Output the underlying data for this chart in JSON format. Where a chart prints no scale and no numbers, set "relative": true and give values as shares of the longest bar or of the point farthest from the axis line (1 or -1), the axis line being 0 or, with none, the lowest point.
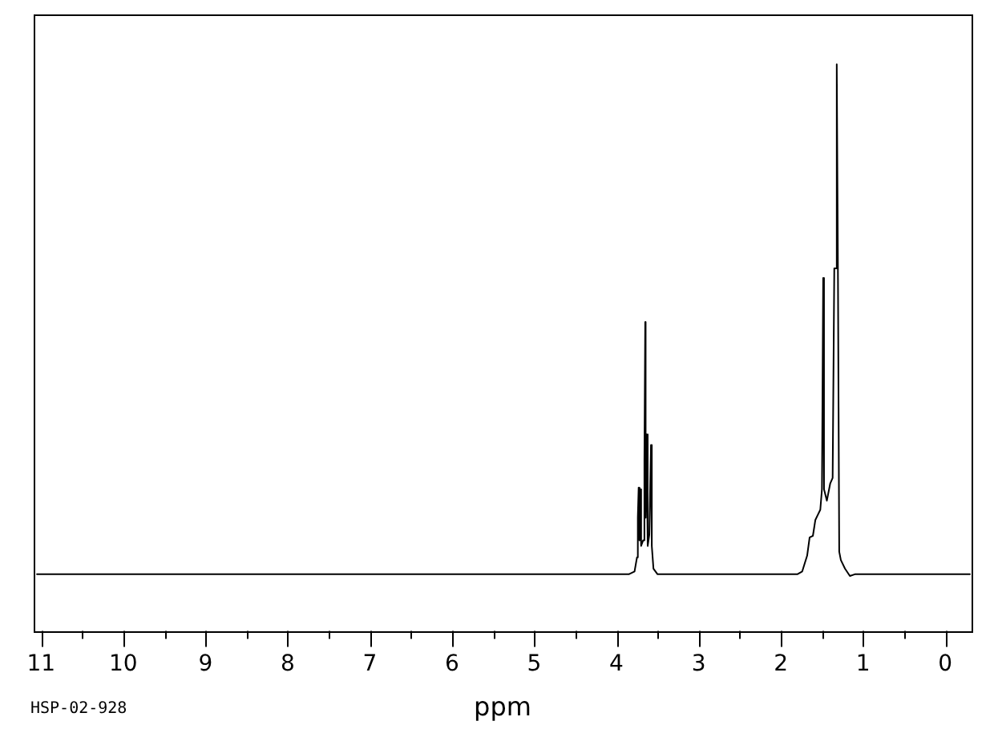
{
  "chart_data": {
    "type": "line",
    "xlabel": "ppm",
    "annotations": [
      "HSP-02-928"
    ],
    "relative": true,
    "tick_labels": "x",
    "marker": "none",
    "line_style": "solid",
    "x": [
      11.05,
      10.5,
      10,
      9.5,
      9,
      8.5,
      8,
      7.5,
      7,
      6.5,
      6,
      5.5,
      5,
      4.5,
      4.2,
      3.85,
      3.78,
      3.75,
      3.74,
      3.73,
      3.72,
      3.71,
      3.7,
      3.675,
      3.66,
      3.65,
      3.645,
      3.635,
      3.62,
      3.6,
      3.58,
      3.57,
      3.55,
      3.5,
      3,
      2.5,
      2,
      1.8,
      1.74,
      1.68,
      1.65,
      1.61,
      1.58,
      1.55,
      1.52,
      1.5,
      1.485,
      1.475,
      1.44,
      1.4,
      1.37,
      1.35,
      1.335,
      1.32,
      1.305,
      1.29,
      1.27,
      1.22,
      1.16,
      1.1,
      0.5,
      0,
      -0.3
    ],
    "series": [
      {
        "color": "#000000",
        "values": [
          0.1,
          0.1,
          0.1,
          0.1,
          0.1,
          0.1,
          0.1,
          0.1,
          0.1,
          0.1,
          0.1,
          0.1,
          0.1,
          0.1,
          0.1,
          0.1,
          0.105,
          0.13,
          0.2,
          0.253,
          0.16,
          0.25,
          0.15,
          0.16,
          0.3,
          0.545,
          0.2,
          0.347,
          0.15,
          0.17,
          0.328,
          0.15,
          0.11,
          0.1,
          0.1,
          0.1,
          0.1,
          0.1,
          0.105,
          0.133,
          0.165,
          0.168,
          0.196,
          0.205,
          0.214,
          0.25,
          0.623,
          0.25,
          0.23,
          0.26,
          0.27,
          0.64,
          0.64,
          1.0,
          0.62,
          0.14,
          0.125,
          0.11,
          0.097,
          0.1,
          0.1,
          0.1,
          0.1
        ]
      }
    ],
    "xlim": [
      11.09,
      -0.32
    ],
    "xticks": [
      11,
      {
        "value": 10.5,
        "label": null
      },
      10,
      {
        "value": 9.5,
        "label": null
      },
      9,
      {
        "value": 8.5,
        "label": null
      },
      8,
      {
        "value": 7.5,
        "label": null
      },
      7,
      {
        "value": 6.5,
        "label": null
      },
      6,
      {
        "value": 5.5,
        "label": null
      },
      5,
      {
        "value": 4.5,
        "label": null
      },
      4,
      {
        "value": 3.5,
        "label": null
      },
      3,
      {
        "value": 2.5,
        "label": null
      },
      2,
      {
        "value": 1.5,
        "label": null
      },
      1,
      {
        "value": 0.5,
        "label": null
      },
      0
    ]
  }
}
